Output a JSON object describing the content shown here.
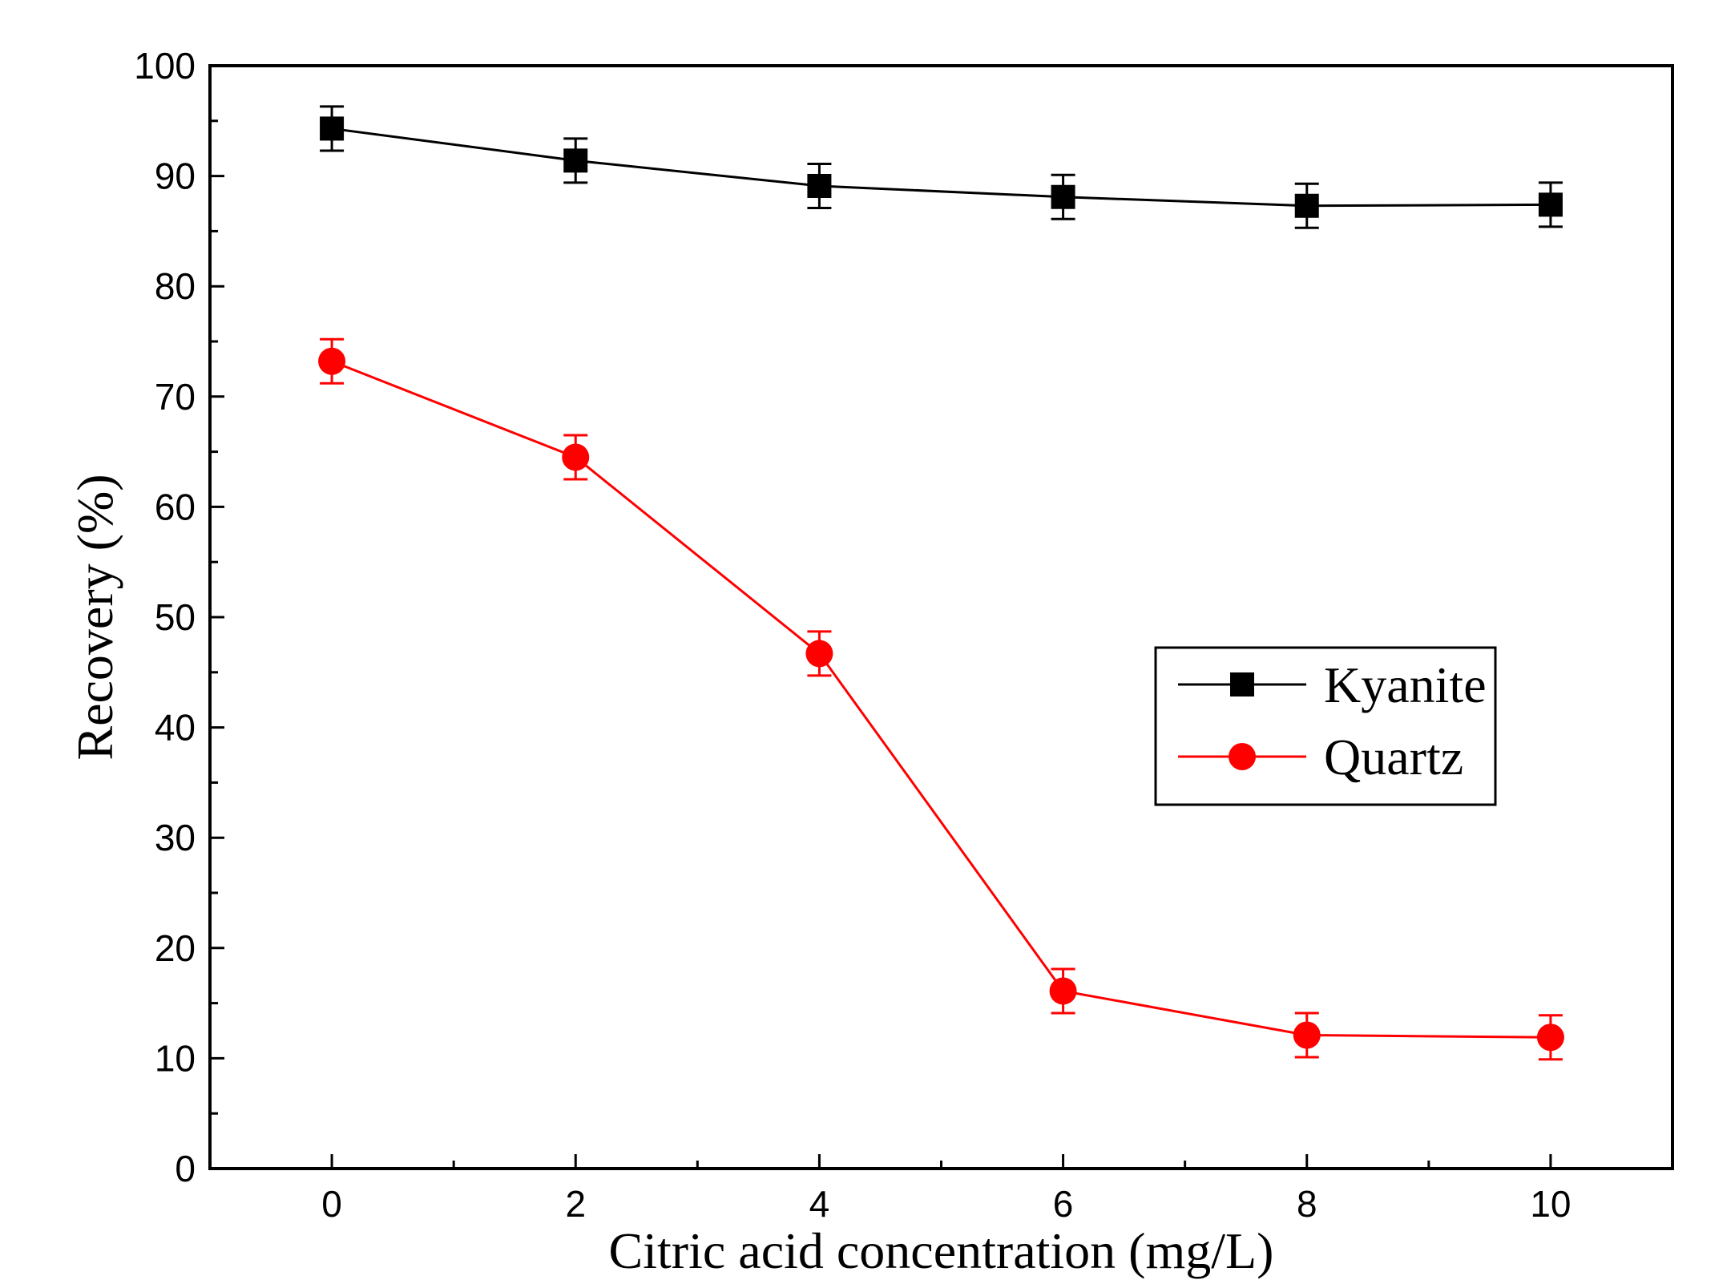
{
  "chart_data": {
    "type": "line",
    "xlabel": "Citric acid concentration (mg/L)",
    "ylabel": "Recovery (%)",
    "xlim": [
      -1,
      11
    ],
    "ylim": [
      0,
      100
    ],
    "xticks": [
      "0",
      "2",
      "4",
      "6",
      "8",
      "10"
    ],
    "yticks": [
      "0",
      "10",
      "20",
      "30",
      "40",
      "50",
      "60",
      "70",
      "80",
      "90",
      "100"
    ],
    "legend_position": "center-right",
    "grid": false,
    "series": [
      {
        "name": "Kyanite",
        "color": "#000000",
        "marker": "square",
        "x": [
          0,
          2,
          4,
          6,
          8,
          10
        ],
        "y": [
          94.3,
          91.4,
          89.1,
          88.1,
          87.3,
          87.4
        ],
        "error": [
          2,
          2,
          2,
          2,
          2,
          2
        ]
      },
      {
        "name": "Quartz",
        "color": "#ff0000",
        "marker": "circle",
        "x": [
          0,
          2,
          4,
          6,
          8,
          10
        ],
        "y": [
          73.2,
          64.5,
          46.7,
          16.1,
          12.1,
          11.9
        ],
        "error": [
          2,
          2,
          2,
          2,
          2,
          2
        ]
      }
    ]
  }
}
